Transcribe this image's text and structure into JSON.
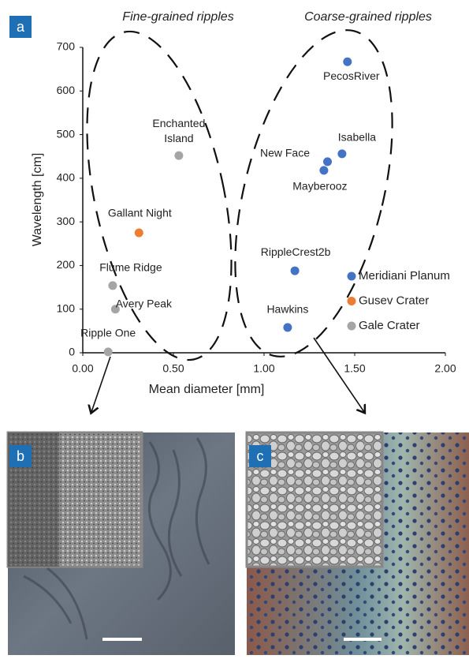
{
  "panel_labels": [
    "a",
    "b",
    "c"
  ],
  "chart_data": {
    "type": "scatter",
    "annotations": [
      "Fine-grained ripples",
      "Coarse-grained ripples"
    ],
    "x_label": "Mean diameter [mm]",
    "y_label": "Wavelength  [cm]",
    "xlim": [
      0,
      2
    ],
    "ylim": [
      0,
      700
    ],
    "xticks": [
      {
        "value": 0,
        "label": "0.00"
      },
      {
        "value": 0.5,
        "label": "0.50"
      },
      {
        "value": 1,
        "label": "1.00"
      },
      {
        "value": 1.5,
        "label": "1.50"
      },
      {
        "value": 2,
        "label": "2.00"
      }
    ],
    "yticks": [
      0,
      100,
      200,
      300,
      400,
      500,
      600,
      700
    ],
    "legend": "right",
    "series": [
      {
        "name": "Meridiani Planum",
        "color": "#4472c4",
        "x": [
          1.13,
          1.17,
          1.33,
          1.35,
          1.43,
          1.46
        ],
        "values": [
          58,
          188,
          418,
          438,
          456,
          667
        ],
        "labels": [
          "Hawkins",
          "RippleCrest2b",
          "Mayberooz",
          "New Face",
          "Isabella",
          "PecosRiver"
        ]
      },
      {
        "name": "Gusev Crater",
        "color": "#ed7d31",
        "x": [
          0.31
        ],
        "values": [
          275
        ],
        "labels": [
          "Gallant Night"
        ]
      },
      {
        "name": "Gale Crater",
        "color": "#a5a5a5",
        "x": [
          0.14,
          0.18,
          0.165,
          0.53
        ],
        "values": [
          2,
          100,
          154,
          452
        ],
        "labels": [
          "Ripple One",
          "Avery Peak",
          "Flume Ridge",
          "Enchanted\nIsland"
        ]
      }
    ]
  }
}
